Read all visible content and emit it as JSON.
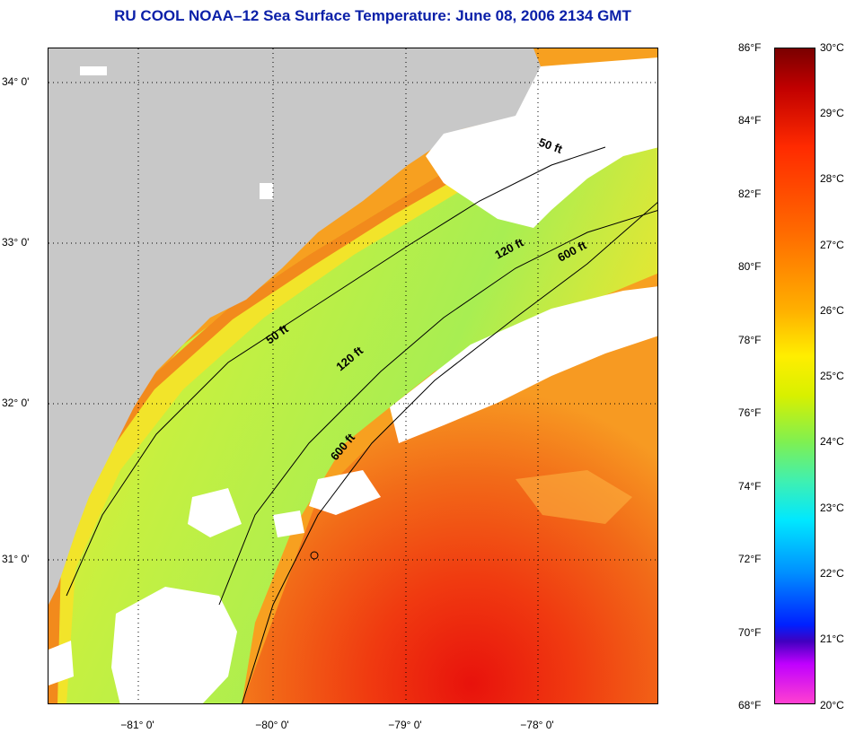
{
  "title": "RU COOL  NOAA–12  Sea Surface Temperature:  June 08, 2006 2134 GMT",
  "map": {
    "lat_labels": [
      "34° 0'",
      "33° 0'",
      "32° 0'",
      "31° 0'"
    ],
    "lon_labels": [
      "−81° 0'",
      "−80° 0'",
      "−79° 0'",
      "−78° 0'"
    ],
    "contour_labels": [
      "50 ft",
      "120 ft",
      "600 ft",
      "50 ft",
      "120 ft",
      "600 ft"
    ],
    "colors": {
      "land": "#c8c8c8",
      "cloud": "#ffffff",
      "grid": "#000000"
    }
  },
  "colorbar": {
    "fahrenheit": [
      "86°F",
      "84°F",
      "82°F",
      "80°F",
      "78°F",
      "76°F",
      "74°F",
      "72°F",
      "70°F",
      "68°F"
    ],
    "celsius": [
      "30°C",
      "29°C",
      "28°C",
      "27°C",
      "26°C",
      "25°C",
      "24°C",
      "23°C",
      "22°C",
      "21°C",
      "20°C"
    ],
    "range_f": [
      68,
      86
    ],
    "range_c": [
      20,
      30
    ]
  }
}
